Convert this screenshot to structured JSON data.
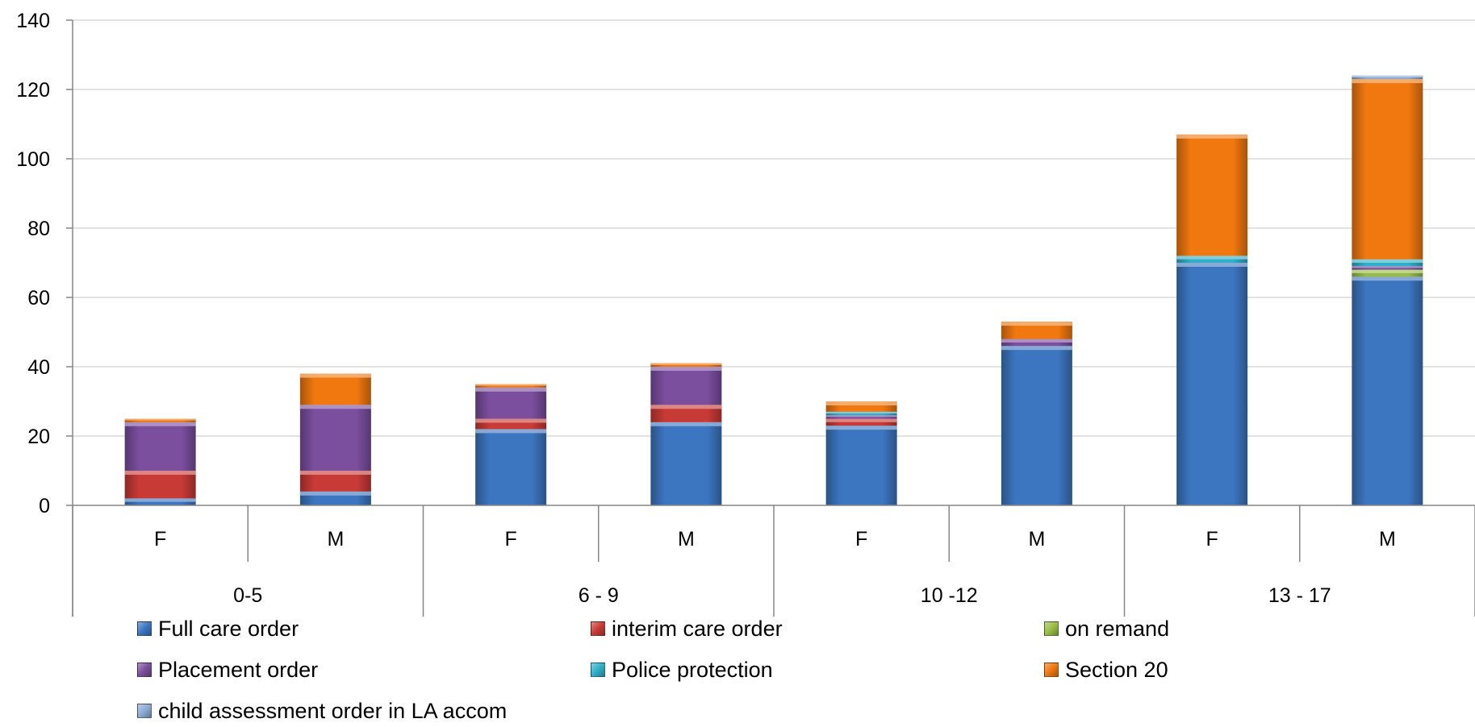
{
  "chart_data": {
    "type": "bar",
    "stacked": true,
    "categories": [
      "F",
      "M",
      "F",
      "M",
      "F",
      "M",
      "F",
      "M"
    ],
    "groups": [
      {
        "label": "0-5",
        "span": [
          0,
          1
        ]
      },
      {
        "label": "6 - 9",
        "span": [
          2,
          3
        ]
      },
      {
        "label": "10 -12",
        "span": [
          4,
          5
        ]
      },
      {
        "label": "13  - 17",
        "span": [
          6,
          7
        ]
      }
    ],
    "series": [
      {
        "name": "Full care order",
        "color": "#3C76C0",
        "values": [
          2,
          4,
          22,
          24,
          23,
          46,
          70,
          66
        ]
      },
      {
        "name": "interim care order",
        "color": "#C83A36",
        "values": [
          8,
          6,
          3,
          5,
          2,
          0,
          0,
          0
        ]
      },
      {
        "name": "on remand",
        "color": "#98BD45",
        "values": [
          0,
          0,
          0,
          0,
          0,
          0,
          0,
          2
        ]
      },
      {
        "name": "Placement order",
        "color": "#7B4E9E",
        "values": [
          14,
          19,
          9,
          11,
          1,
          2,
          0,
          1
        ]
      },
      {
        "name": "Police protection",
        "color": "#2FAFC9",
        "values": [
          0,
          0,
          0,
          0,
          1,
          0,
          2,
          2
        ]
      },
      {
        "name": "Section 20",
        "color": "#F0780F",
        "values": [
          1,
          9,
          1,
          1,
          3,
          5,
          35,
          52
        ]
      },
      {
        "name": "child assessment order in LA accom",
        "color": "#8EA9D4",
        "values": [
          0,
          0,
          0,
          0,
          0,
          0,
          0,
          1
        ]
      }
    ],
    "yticks": [
      "0",
      "20",
      "40",
      "60",
      "80",
      "100",
      "120",
      "140"
    ],
    "ylim": [
      0,
      140
    ],
    "grid": true,
    "legend_position": "bottom"
  }
}
